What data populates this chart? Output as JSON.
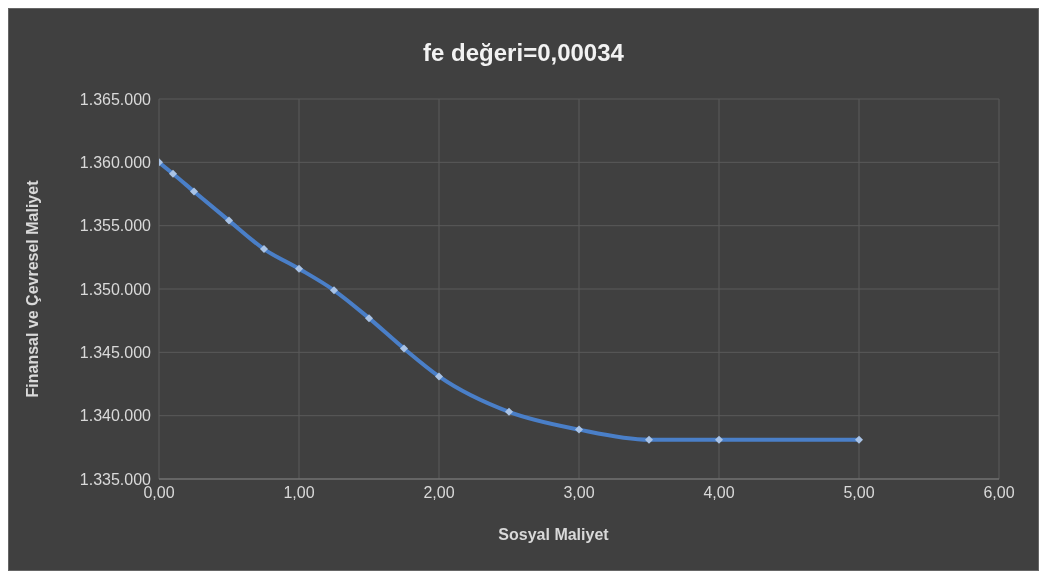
{
  "chart_data": {
    "type": "line",
    "title": "fe değeri=0,00034",
    "xlabel": "Sosyal Maliyet",
    "ylabel": "Finansal ve Çevresel Maliyet",
    "x": [
      0,
      0.1,
      0.25,
      0.5,
      0.75,
      1,
      1.25,
      1.5,
      1.75,
      2,
      2.5,
      3,
      3.5,
      4,
      5
    ],
    "series": [
      {
        "color": "#4a7fc8",
        "values": [
          1360000,
          1359100,
          1357700,
          1355400,
          1353150,
          1351600,
          1349900,
          1347700,
          1345300,
          1343100,
          1340300,
          1338900,
          1338100,
          1338100,
          1338100
        ]
      }
    ],
    "xlim": [
      0,
      6
    ],
    "xticks": [
      {
        "value": 0,
        "label": "0,00"
      },
      {
        "value": 1,
        "label": "1,00"
      },
      {
        "value": 2,
        "label": "2,00"
      },
      {
        "value": 3,
        "label": "3,00"
      },
      {
        "value": 4,
        "label": "4,00"
      },
      {
        "value": 5,
        "label": "5,00"
      },
      {
        "value": 6,
        "label": "6,00"
      }
    ],
    "ylim": [
      1335000,
      1365000
    ],
    "yticks": [
      {
        "value": 1335000,
        "label": "1.335.000"
      },
      {
        "value": 1340000,
        "label": "1.340.000"
      },
      {
        "value": 1345000,
        "label": "1.345.000"
      },
      {
        "value": 1350000,
        "label": "1.350.000"
      },
      {
        "value": 1355000,
        "label": "1.355.000"
      },
      {
        "value": 1360000,
        "label": "1.360.000"
      },
      {
        "value": 1365000,
        "label": "1.365.000"
      }
    ],
    "grid": true,
    "marker": "diamond",
    "line_style": "solid",
    "legend": false
  }
}
